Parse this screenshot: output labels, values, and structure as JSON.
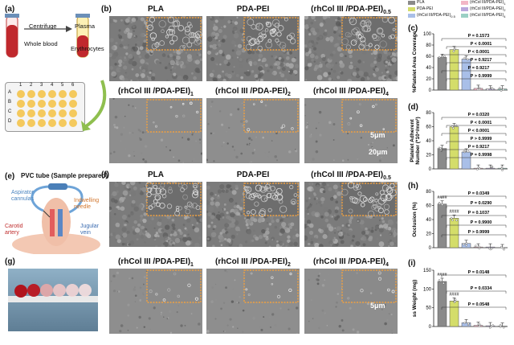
{
  "panels": {
    "a": {
      "label": "(a)",
      "texts": {
        "centrifuge": "Centrifuge",
        "plasma": "Plasma",
        "whole_blood": "Whole blood",
        "erythrocytes": "Erythrocytes"
      },
      "plate_cols": [
        "1",
        "2",
        "3",
        "4",
        "5",
        "6"
      ],
      "plate_rows": [
        "A",
        "B",
        "C",
        "D"
      ]
    },
    "b": {
      "label": "(b)",
      "images": [
        {
          "title": "PLA",
          "sub": ""
        },
        {
          "title": "PDA-PEI",
          "sub": ""
        },
        {
          "title": "(rhCol III /PDA-PEI)",
          "sub": "0.5"
        },
        {
          "title": "(rhCol III /PDA-PEI)",
          "sub": "1"
        },
        {
          "title": "(rhCol III /PDA-PEI)",
          "sub": "2"
        },
        {
          "title": "(rhCol III /PDA-PEI)",
          "sub": "4"
        }
      ],
      "scale_small": "5μm",
      "scale_large": "20μm"
    },
    "e": {
      "label": "(e)",
      "title": "PVC tube (Sample prepared)",
      "texts": {
        "aspirator": "Aspirator\ncannulas",
        "needle": "Indwelling\nneedle",
        "carotid": "Carotid\nartery",
        "jugular": "Jugular\nvein"
      }
    },
    "f": {
      "label": "(f)",
      "images": [
        {
          "title": "PLA",
          "sub": ""
        },
        {
          "title": "PDA-PEI",
          "sub": ""
        },
        {
          "title": "(rhCol III /PDA-PEI)",
          "sub": "0.5"
        },
        {
          "title": "(rhCol III /PDA-PEI)",
          "sub": "1"
        },
        {
          "title": "(rhCol III /PDA-PEI)",
          "sub": "2"
        },
        {
          "title": "(rhCol III /PDA-PEI)",
          "sub": "4"
        }
      ],
      "scale_small": "5μm"
    },
    "g": {
      "label": "(g)"
    }
  },
  "legend": {
    "entries": [
      {
        "name": "PLA",
        "color": "#8a8a8a"
      },
      {
        "name": "(rhCol III/PDA-PEI)",
        "sub": "1",
        "color": "#f2b6c6"
      },
      {
        "name": "PDA-PEI",
        "color": "#d4dd6a"
      },
      {
        "name": "(rhCol III/PDA-PEI)",
        "sub": "2",
        "color": "#b9a6dc"
      },
      {
        "name": "(rhCol III/PDA-PEI)",
        "sub": "0.5",
        "color": "#a9bfe8"
      },
      {
        "name": "(rhCol III/PDA-PEI)",
        "sub": "4",
        "color": "#9ad0c4"
      }
    ]
  },
  "chart_data": [
    {
      "id": "c",
      "type": "bar",
      "label": "(c)",
      "ylabel": "%Platelet Area Coverage",
      "ylim": [
        0,
        100
      ],
      "yticks": [
        0,
        20,
        40,
        60,
        80,
        100
      ],
      "values": [
        58,
        72,
        55,
        3,
        2,
        2
      ],
      "annotations": [
        "P = 0.1573",
        "P < 0.0001",
        "P < 0.0001",
        "P = 0.9217",
        "P = 0.9217",
        "P > 0.9999"
      ],
      "markers": []
    },
    {
      "id": "d",
      "type": "bar",
      "label": "(d)",
      "ylabel": "Platelet Adherent\nNumber (*10⁴/mm²)",
      "ylim": [
        0,
        80
      ],
      "yticks": [
        0,
        20,
        40,
        60,
        80
      ],
      "values": [
        29,
        60,
        24,
        1,
        1,
        1
      ],
      "annotations": [
        "P = 0.0320",
        "P < 0.0001",
        "P < 0.0001",
        "P > 0.9999",
        "P = 0.9217",
        "P = 0.9998"
      ],
      "markers": []
    },
    {
      "id": "h",
      "type": "bar",
      "label": "(h)",
      "ylabel": "Occlusion (%)",
      "ylim": [
        0,
        80
      ],
      "yticks": [
        0,
        20,
        40,
        60,
        80
      ],
      "values": [
        62,
        42,
        6,
        1,
        1,
        0
      ],
      "annotations": [
        "P = 0.0349",
        "P = 0.0290",
        "P = 0.1037",
        "P = 0.9900",
        "P > 0.9999"
      ],
      "markers": [
        "####",
        "####"
      ]
    },
    {
      "id": "i",
      "type": "bar",
      "label": "(i)",
      "ylabel": "ss Weight (mg)",
      "ylim": [
        0,
        150
      ],
      "yticks": [
        0,
        50,
        100,
        150
      ],
      "values": [
        120,
        68,
        10,
        3,
        2,
        1
      ],
      "annotations": [
        "P = 0.0148",
        "P = 0.0334",
        "P = 0.0548"
      ],
      "markers": [
        "####",
        "####"
      ]
    }
  ]
}
